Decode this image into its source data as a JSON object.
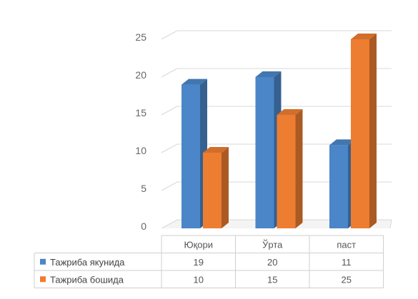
{
  "chart_data": {
    "type": "bar",
    "title": "",
    "xlabel": "",
    "ylabel": "",
    "categories": [
      "Юқори",
      "Ўрта",
      "паст"
    ],
    "series": [
      {
        "name": "Тажриба якунида",
        "values": [
          19,
          20,
          11
        ],
        "color": "#4a86c8"
      },
      {
        "name": "Тажриба бошида",
        "values": [
          10,
          15,
          25
        ],
        "color": "#ed7d31"
      }
    ],
    "ylim": [
      0,
      25
    ],
    "y_ticks": [
      0,
      5,
      10,
      15,
      20,
      25
    ],
    "grid": true,
    "three_d": true,
    "data_table": true,
    "legend": "in-data-table"
  }
}
